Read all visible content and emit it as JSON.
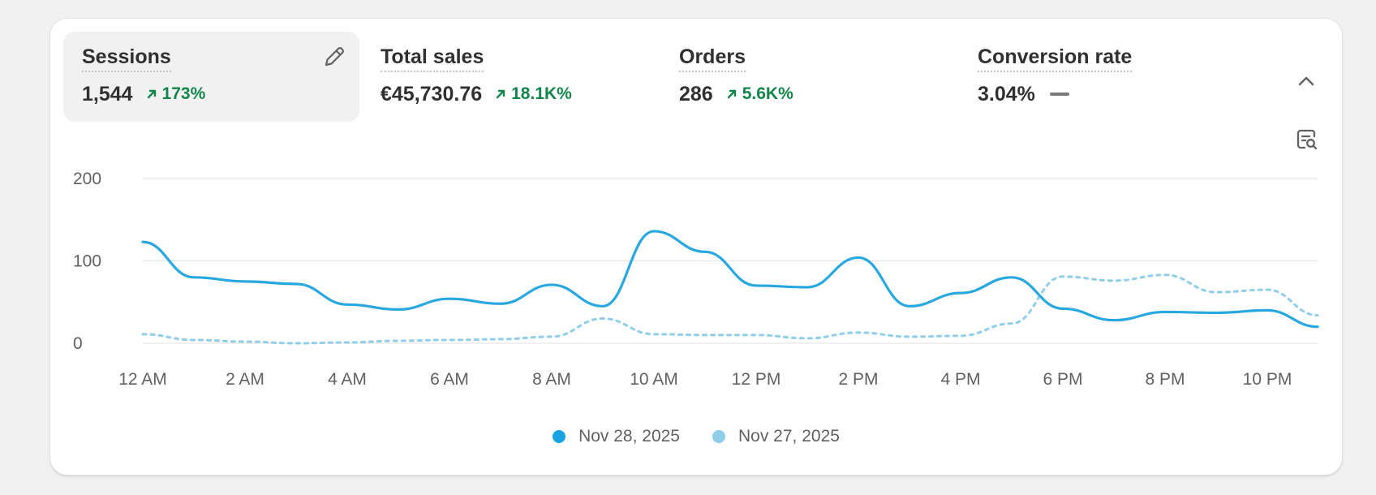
{
  "metrics": [
    {
      "label": "Sessions",
      "value": "1,544",
      "change": "173%",
      "trend": "up",
      "active": true
    },
    {
      "label": "Total sales",
      "value": "€45,730.76",
      "change": "18.1K%",
      "trend": "up",
      "active": false
    },
    {
      "label": "Orders",
      "value": "286",
      "change": "5.6K%",
      "trend": "up",
      "active": false
    },
    {
      "label": "Conversion rate",
      "value": "3.04%",
      "change": "",
      "trend": "flat",
      "active": false
    }
  ],
  "icons": {
    "edit": "pencil-icon",
    "collapse": "chevron-up-icon",
    "analyze": "chat-search-icon",
    "trend_up": "arrow-up-right-icon"
  },
  "colors": {
    "positive": "#14854a",
    "series_current": "#29a8e0",
    "series_previous": "#8fcde8",
    "grid": "#e6e6e6"
  },
  "chart_data": {
    "type": "line",
    "x": [
      "12 AM",
      "1 AM",
      "2 AM",
      "3 AM",
      "4 AM",
      "5 AM",
      "6 AM",
      "7 AM",
      "8 AM",
      "9 AM",
      "10 AM",
      "11 AM",
      "12 PM",
      "1 PM",
      "2 PM",
      "3 PM",
      "4 PM",
      "5 PM",
      "6 PM",
      "7 PM",
      "8 PM",
      "9 PM",
      "10 PM",
      "11 PM"
    ],
    "x_tick_labels": [
      "12 AM",
      "2 AM",
      "4 AM",
      "6 AM",
      "8 AM",
      "10 AM",
      "12 PM",
      "2 PM",
      "4 PM",
      "6 PM",
      "8 PM",
      "10 PM"
    ],
    "y_ticks": [
      "200",
      "100",
      "0"
    ],
    "ylim": [
      0,
      200
    ],
    "grid": true,
    "legend_position": "bottom-center",
    "series": [
      {
        "name": "Nov 28, 2025",
        "style": "solid",
        "values": [
          123,
          80,
          75,
          72,
          47,
          41,
          54,
          48,
          71,
          45,
          136,
          111,
          70,
          68,
          104,
          45,
          61,
          80,
          42,
          28,
          38,
          37,
          40,
          20
        ]
      },
      {
        "name": "Nov 27, 2025",
        "style": "dashed",
        "values": [
          11,
          4,
          2,
          0,
          1,
          3,
          4,
          5,
          8,
          30,
          11,
          10,
          10,
          6,
          13,
          8,
          9,
          24,
          81,
          76,
          83,
          62,
          65,
          34
        ]
      }
    ]
  }
}
